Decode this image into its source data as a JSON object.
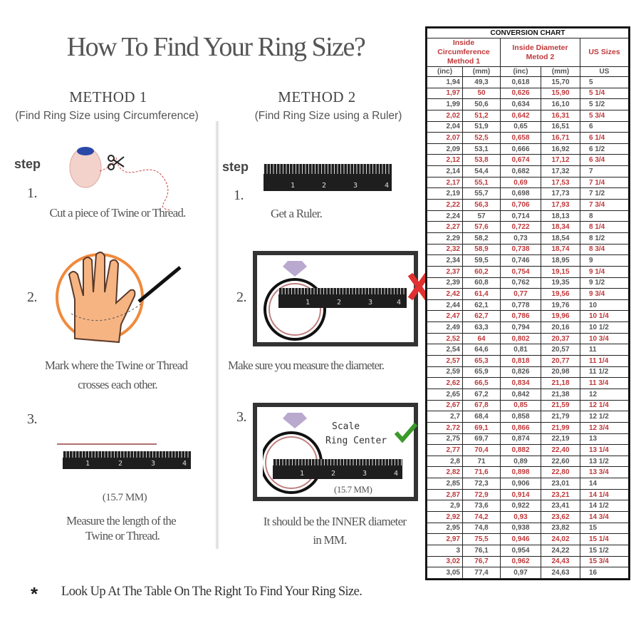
{
  "title": "How To Find Your Ring Size?",
  "method1": {
    "heading": "METHOD 1",
    "subtitle": "(Find Ring Size using Circumference)",
    "step_label": "step",
    "steps": [
      {
        "num": "1.",
        "caption": "Cut a piece of Twine or Thread."
      },
      {
        "num": "2.",
        "caption_line1": "Mark where the Twine or Thread",
        "caption_line2": "crosses each other."
      },
      {
        "num": "3.",
        "measure": "(15.7 MM)",
        "caption_line1": "Measure the length of the",
        "caption_line2": "Twine or Thread."
      }
    ]
  },
  "method2": {
    "heading": "METHOD 2",
    "subtitle": "(Find Ring Size using a Ruler)",
    "step_label": "step",
    "steps": [
      {
        "num": "1.",
        "caption": "Get a Ruler."
      },
      {
        "num": "2.",
        "caption": "Make sure you measure the diameter."
      },
      {
        "num": "3.",
        "scale_line1": "Scale",
        "scale_line2": "Ring Center",
        "measure": "(15.7 MM)",
        "caption_line1": "It should be the INNER diameter",
        "caption_line2": "in MM."
      }
    ]
  },
  "ruler_labels": [
    "1",
    "2",
    "3",
    "4"
  ],
  "footer": {
    "asterisk": "*",
    "text": "Look Up At The Table On The Right To Find Your Ring Size."
  },
  "colors": {
    "red": "#c0393b",
    "orange": "#f08a3c",
    "check": "#3a9a2a",
    "cross": "#e03030",
    "diamond": "#b9a9cf"
  },
  "chart_data": {
    "type": "table",
    "title": "CONVERSION CHART",
    "groups": [
      "Inside Circumference Method 1",
      "Inside Diameter Metod 2",
      "US Sizes"
    ],
    "group_lines": [
      [
        "Inside Circumference",
        "Method 1"
      ],
      [
        "Inside Diameter",
        "Metod 2"
      ],
      [
        "US Sizes"
      ]
    ],
    "columns": [
      "(inc)",
      "(mm)",
      "(inc)",
      "(mm)",
      "US"
    ],
    "rows": [
      [
        "1,94",
        "49,3",
        "0,618",
        "15,70",
        "5"
      ],
      [
        "1,97",
        "50",
        "0,626",
        "15,90",
        "5 1/4"
      ],
      [
        "1,99",
        "50,6",
        "0,634",
        "16,10",
        "5 1/2"
      ],
      [
        "2,02",
        "51,2",
        "0,642",
        "16,31",
        "5 3/4"
      ],
      [
        "2,04",
        "51,9",
        "0,65",
        "16,51",
        "6"
      ],
      [
        "2,07",
        "52,5",
        "0,658",
        "16,71",
        "6 1/4"
      ],
      [
        "2,09",
        "53,1",
        "0,666",
        "16,92",
        "6 1/2"
      ],
      [
        "2,12",
        "53,8",
        "0,674",
        "17,12",
        "6 3/4"
      ],
      [
        "2,14",
        "54,4",
        "0,682",
        "17,32",
        "7"
      ],
      [
        "2,17",
        "55,1",
        "0,69",
        "17,53",
        "7 1/4"
      ],
      [
        "2,19",
        "55,7",
        "0,698",
        "17,73",
        "7 1/2"
      ],
      [
        "2,22",
        "56,3",
        "0,706",
        "17,93",
        "7 3/4"
      ],
      [
        "2,24",
        "57",
        "0,714",
        "18,13",
        "8"
      ],
      [
        "2,27",
        "57,6",
        "0,722",
        "18,34",
        "8 1/4"
      ],
      [
        "2,29",
        "58,2",
        "0,73",
        "18,54",
        "8 1/2"
      ],
      [
        "2,32",
        "58,9",
        "0,738",
        "18,74",
        "8 3/4"
      ],
      [
        "2,34",
        "59,5",
        "0,746",
        "18,95",
        "9"
      ],
      [
        "2,37",
        "60,2",
        "0,754",
        "19,15",
        "9 1/4"
      ],
      [
        "2,39",
        "60,8",
        "0,762",
        "19,35",
        "9 1/2"
      ],
      [
        "2,42",
        "61,4",
        "0,77",
        "19,56",
        "9 3/4"
      ],
      [
        "2,44",
        "62,1",
        "0,778",
        "19,76",
        "10"
      ],
      [
        "2,47",
        "62,7",
        "0,786",
        "19,96",
        "10 1/4"
      ],
      [
        "2,49",
        "63,3",
        "0,794",
        "20,16",
        "10 1/2"
      ],
      [
        "2,52",
        "64",
        "0,802",
        "20,37",
        "10 3/4"
      ],
      [
        "2,54",
        "64,6",
        "0,81",
        "20,57",
        "11"
      ],
      [
        "2,57",
        "65,3",
        "0,818",
        "20,77",
        "11 1/4"
      ],
      [
        "2,59",
        "65,9",
        "0,826",
        "20,98",
        "11 1/2"
      ],
      [
        "2,62",
        "66,5",
        "0,834",
        "21,18",
        "11 3/4"
      ],
      [
        "2,65",
        "67,2",
        "0,842",
        "21,38",
        "12"
      ],
      [
        "2,67",
        "67,8",
        "0,85",
        "21,59",
        "12 1/4"
      ],
      [
        "2,7",
        "68,4",
        "0,858",
        "21,79",
        "12 1/2"
      ],
      [
        "2,72",
        "69,1",
        "0,866",
        "21,99",
        "12 3/4"
      ],
      [
        "2,75",
        "69,7",
        "0,874",
        "22,19",
        "13"
      ],
      [
        "2,77",
        "70,4",
        "0,882",
        "22,40",
        "13 1/4"
      ],
      [
        "2,8",
        "71",
        "0,89",
        "22,60",
        "13 1/2"
      ],
      [
        "2,82",
        "71,6",
        "0,898",
        "22,80",
        "13 3/4"
      ],
      [
        "2,85",
        "72,3",
        "0,906",
        "23,01",
        "14"
      ],
      [
        "2,87",
        "72,9",
        "0,914",
        "23,21",
        "14 1/4"
      ],
      [
        "2,9",
        "73,6",
        "0,922",
        "23,41",
        "14 1/2"
      ],
      [
        "2,92",
        "74,2",
        "0,93",
        "23,62",
        "14 3/4"
      ],
      [
        "2,95",
        "74,8",
        "0,938",
        "23,82",
        "15"
      ],
      [
        "2,97",
        "75,5",
        "0,946",
        "24,02",
        "15 1/4"
      ],
      [
        "3",
        "76,1",
        "0,954",
        "24,22",
        "15 1/2"
      ],
      [
        "3,02",
        "76,7",
        "0,962",
        "24,43",
        "15 3/4"
      ],
      [
        "3,05",
        "77,4",
        "0,97",
        "24,63",
        "16"
      ]
    ],
    "alternate_row_color": "#c0393b"
  }
}
